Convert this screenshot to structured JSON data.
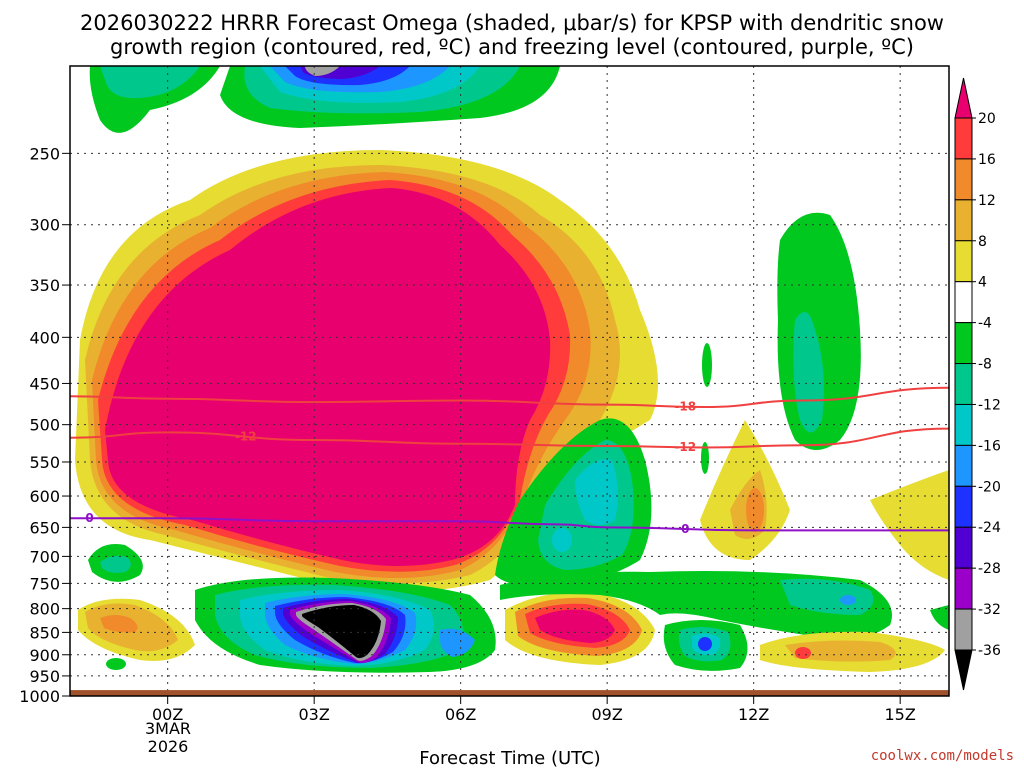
{
  "chart_data": {
    "type": "heatmap",
    "title_line1": "2026030222 HRRR Forecast Omega (shaded, μbar/s) for KPSP with dendritic snow",
    "title_line2": "growth region (contoured, red, ºC) and freezing level (contoured, purple, ºC)",
    "xlabel": "Forecast Time (UTC)",
    "ylabel": "",
    "credit": "coolwx.com/models",
    "x_ticks": [
      "00Z",
      "03Z",
      "06Z",
      "09Z",
      "12Z",
      "15Z"
    ],
    "x_tick_hours": [
      0,
      3,
      6,
      9,
      12,
      15
    ],
    "date_label_line1": "3MAR",
    "date_label_line2": "2026",
    "xlim_hours": [
      -2,
      16
    ],
    "y_ticks": [
      "250",
      "300",
      "350",
      "400",
      "450",
      "500",
      "550",
      "600",
      "650",
      "700",
      "750",
      "800",
      "850",
      "900",
      "950",
      "1000"
    ],
    "y_tick_values": [
      250,
      300,
      350,
      400,
      450,
      500,
      550,
      600,
      650,
      700,
      750,
      800,
      850,
      900,
      950,
      1000
    ],
    "ylim_hPa": [
      200,
      1000
    ],
    "y_scale": "log-pressure",
    "colorbar": {
      "ticks": [
        "20",
        "16",
        "12",
        "8",
        "4",
        "-4",
        "-8",
        "-12",
        "-16",
        "-20",
        "-24",
        "-28",
        "-32",
        "-36"
      ],
      "tick_values": [
        20,
        16,
        12,
        8,
        4,
        -4,
        -8,
        -12,
        -16,
        -20,
        -24,
        -28,
        -32,
        -36
      ],
      "colors": [
        "#e8006e",
        "#ff3b3b",
        "#f08a2a",
        "#e8b230",
        "#e6dc32",
        "#ffffff",
        "#00c81e",
        "#00c88c",
        "#00c8c8",
        "#1e96ff",
        "#1e32ff",
        "#5000d2",
        "#9b00c8",
        "#a0a0a0",
        "#000000"
      ]
    },
    "contours": [
      {
        "name": "-18",
        "color": "#f04040",
        "points_hour_hPa": [
          [
            -2,
            465
          ],
          [
            0,
            468
          ],
          [
            3,
            472
          ],
          [
            6,
            470
          ],
          [
            9,
            475
          ],
          [
            11,
            478
          ],
          [
            13,
            470
          ],
          [
            16,
            455
          ]
        ]
      },
      {
        "name": "-12",
        "color": "#f04040",
        "points_hour_hPa": [
          [
            -2,
            517
          ],
          [
            0,
            510
          ],
          [
            3,
            520
          ],
          [
            6,
            525
          ],
          [
            9,
            528
          ],
          [
            11,
            530
          ],
          [
            13,
            527
          ],
          [
            16,
            505
          ]
        ]
      },
      {
        "name": "0",
        "color": "#9010c8",
        "points_hour_hPa": [
          [
            -2,
            635
          ],
          [
            0,
            635
          ],
          [
            3,
            640
          ],
          [
            6,
            640
          ],
          [
            8,
            645
          ],
          [
            9,
            650
          ],
          [
            12,
            655
          ],
          [
            16,
            655
          ]
        ]
      }
    ],
    "surface_color": "#a0522d",
    "surface_from_hPa": 985
  }
}
